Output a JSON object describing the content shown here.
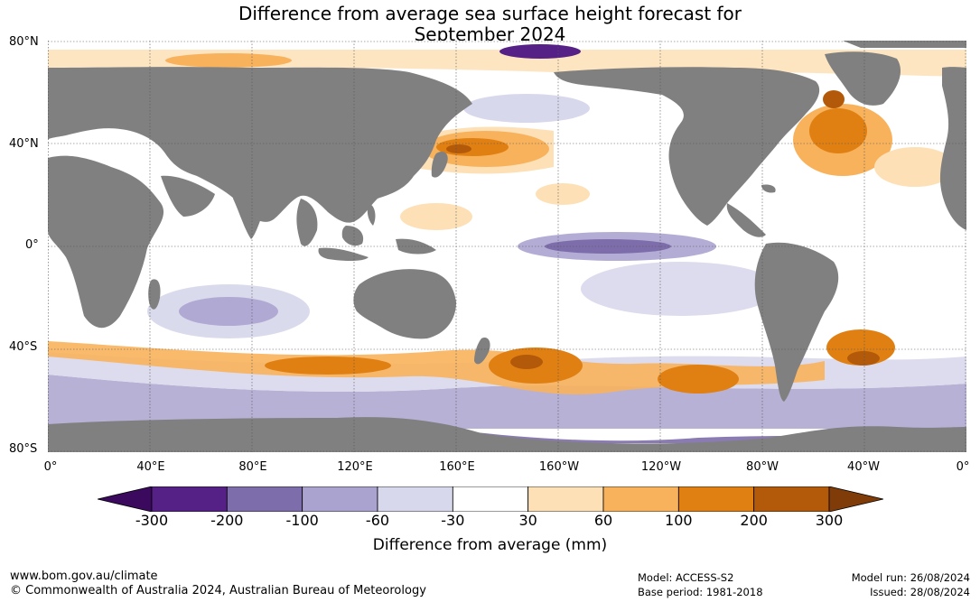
{
  "title_line1": "Difference from average sea surface height forecast for",
  "title_line2": "September 2024",
  "map": {
    "lat_labels": [
      "80°N",
      "40°N",
      "0°",
      "40°S",
      "80°S"
    ],
    "lon_labels": [
      "0°",
      "40°E",
      "80°E",
      "120°E",
      "160°E",
      "160°W",
      "120°W",
      "80°W",
      "40°W",
      "0°"
    ],
    "land_color": "#808080",
    "ocean_color": "#ffffff"
  },
  "legend": {
    "title": "Difference from average (mm)",
    "ticks": [
      "-300",
      "-200",
      "-100",
      "-60",
      "-30",
      "30",
      "60",
      "100",
      "200",
      "300"
    ],
    "colors": [
      "#3b0a5e",
      "#562187",
      "#7e6dab",
      "#aba3cf",
      "#d8d8ec",
      "#ffffff",
      "#fde0b6",
      "#f8b25c",
      "#e08013",
      "#b35a0a",
      "#7f3c08"
    ]
  },
  "footer": {
    "url": "www.bom.gov.au/climate",
    "copyright": "© Commonwealth of Australia 2024, Australian Bureau of Meteorology",
    "model": "Model: ACCESS-S2",
    "base_period": "Base period: 1981-2018",
    "model_run": "Model run: 26/08/2024",
    "issued": "Issued: 28/08/2024"
  }
}
